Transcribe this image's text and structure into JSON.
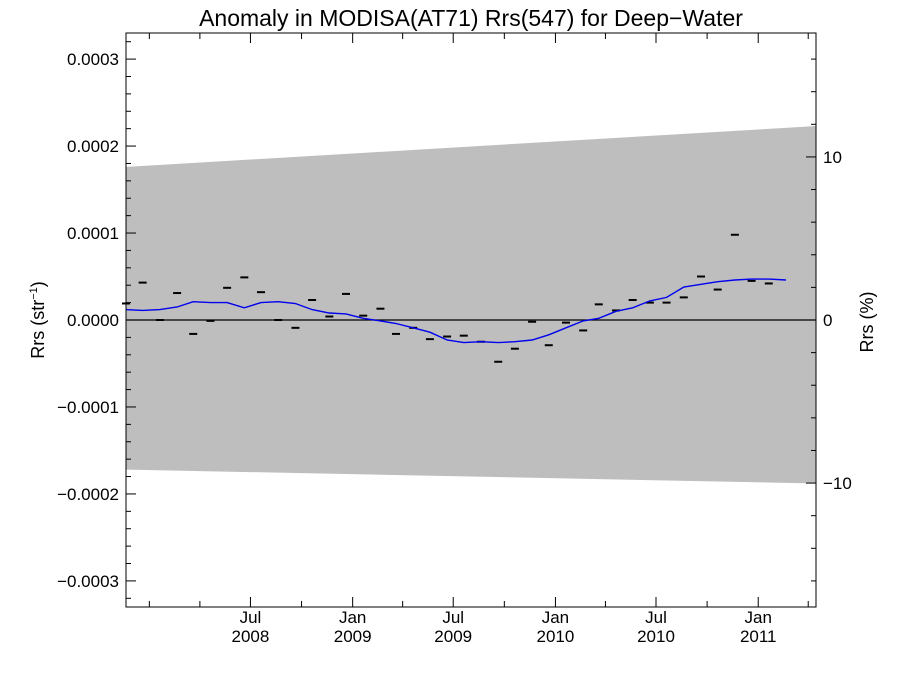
{
  "chart_data": {
    "type": "line",
    "title": "Anomaly in MODISA(AT71) Rrs(547) for Deep−Water",
    "ylabel_left": "Rrs (str",
    "ylabel_left_sup": "−1",
    "ylabel_left_close": ")",
    "ylabel_right": "Rrs (%)",
    "x_range": [
      "2007-11-20",
      "2011-04-15"
    ],
    "ylim_left": [
      -0.00033,
      0.00033
    ],
    "ylim_right": [
      -17.6,
      17.6
    ],
    "y_ticks_left": [
      {
        "value": 0.0003,
        "label": "0.0003"
      },
      {
        "value": 0.0002,
        "label": "0.0002"
      },
      {
        "value": 0.0001,
        "label": "0.0001"
      },
      {
        "value": 0.0,
        "label": "0.0000"
      },
      {
        "value": -0.0001,
        "label": "−0.0001"
      },
      {
        "value": -0.0002,
        "label": "−0.0002"
      },
      {
        "value": -0.0003,
        "label": "−0.0003"
      }
    ],
    "y_ticks_right": [
      {
        "value": 10,
        "label": "10"
      },
      {
        "value": 0,
        "label": "0"
      },
      {
        "value": -10,
        "label": "−10"
      }
    ],
    "x_ticks": [
      {
        "date": "2008-07-01",
        "month": "Jul",
        "year": "2008"
      },
      {
        "date": "2009-01-01",
        "month": "Jan",
        "year": "2009"
      },
      {
        "date": "2009-07-01",
        "month": "Jul",
        "year": "2009"
      },
      {
        "date": "2010-01-01",
        "month": "Jan",
        "year": "2010"
      },
      {
        "date": "2010-07-01",
        "month": "Jul",
        "year": "2010"
      },
      {
        "date": "2011-01-01",
        "month": "Jan",
        "year": "2011"
      }
    ],
    "uncertainty_band": {
      "color": "#bebebe",
      "upper": [
        {
          "date": "2007-11-20",
          "value": 0.000176
        },
        {
          "date": "2011-04-15",
          "value": 0.000223
        }
      ],
      "lower": [
        {
          "date": "2007-11-20",
          "value": -0.000172
        },
        {
          "date": "2011-04-15",
          "value": -0.000188
        }
      ]
    },
    "zero_line": true,
    "series": [
      {
        "kind": "points",
        "color": "#000000",
        "points": [
          {
            "date": "2007-11-20",
            "value": 1.9e-05
          },
          {
            "date": "2007-12-20",
            "value": 4.3e-05
          },
          {
            "date": "2008-01-20",
            "value": 0.0
          },
          {
            "date": "2008-02-20",
            "value": 3.1e-05
          },
          {
            "date": "2008-03-20",
            "value": -1.6e-05
          },
          {
            "date": "2008-04-20",
            "value": -1e-06
          },
          {
            "date": "2008-05-20",
            "value": 3.7e-05
          },
          {
            "date": "2008-06-20",
            "value": 4.9e-05
          },
          {
            "date": "2008-07-20",
            "value": 3.2e-05
          },
          {
            "date": "2008-08-20",
            "value": 0.0
          },
          {
            "date": "2008-09-20",
            "value": -9e-06
          },
          {
            "date": "2008-10-20",
            "value": 2.3e-05
          },
          {
            "date": "2008-11-20",
            "value": 4e-06
          },
          {
            "date": "2008-12-20",
            "value": 3e-05
          },
          {
            "date": "2009-01-20",
            "value": 5e-06
          },
          {
            "date": "2009-02-20",
            "value": 1.3e-05
          },
          {
            "date": "2009-03-20",
            "value": -1.6e-05
          },
          {
            "date": "2009-04-20",
            "value": -9e-06
          },
          {
            "date": "2009-05-20",
            "value": -2.2e-05
          },
          {
            "date": "2009-06-20",
            "value": -1.9e-05
          },
          {
            "date": "2009-07-20",
            "value": -1.8e-05
          },
          {
            "date": "2009-08-20",
            "value": -2.5e-05
          },
          {
            "date": "2009-09-20",
            "value": -4.8e-05
          },
          {
            "date": "2009-10-20",
            "value": -3.3e-05
          },
          {
            "date": "2009-11-20",
            "value": -2e-06
          },
          {
            "date": "2009-12-20",
            "value": -2.9e-05
          },
          {
            "date": "2010-01-20",
            "value": -3e-06
          },
          {
            "date": "2010-02-20",
            "value": -1.2e-05
          },
          {
            "date": "2010-03-20",
            "value": 1.8e-05
          },
          {
            "date": "2010-04-20",
            "value": 1.1e-05
          },
          {
            "date": "2010-05-20",
            "value": 2.3e-05
          },
          {
            "date": "2010-06-20",
            "value": 2e-05
          },
          {
            "date": "2010-07-20",
            "value": 2e-05
          },
          {
            "date": "2010-08-20",
            "value": 2.6e-05
          },
          {
            "date": "2010-09-20",
            "value": 5e-05
          },
          {
            "date": "2010-10-20",
            "value": 3.5e-05
          },
          {
            "date": "2010-11-20",
            "value": 9.8e-05
          },
          {
            "date": "2010-12-20",
            "value": 4.5e-05
          },
          {
            "date": "2011-01-20",
            "value": 4.2e-05
          }
        ]
      },
      {
        "kind": "line",
        "color": "#0000ee",
        "points": [
          {
            "date": "2007-11-20",
            "value": 1.2e-05
          },
          {
            "date": "2007-12-20",
            "value": 1.1e-05
          },
          {
            "date": "2008-01-20",
            "value": 1.2e-05
          },
          {
            "date": "2008-02-20",
            "value": 1.5e-05
          },
          {
            "date": "2008-03-20",
            "value": 2.1e-05
          },
          {
            "date": "2008-04-20",
            "value": 2e-05
          },
          {
            "date": "2008-05-20",
            "value": 2e-05
          },
          {
            "date": "2008-06-20",
            "value": 1.4e-05
          },
          {
            "date": "2008-07-20",
            "value": 2e-05
          },
          {
            "date": "2008-08-20",
            "value": 2.1e-05
          },
          {
            "date": "2008-09-20",
            "value": 1.9e-05
          },
          {
            "date": "2008-10-20",
            "value": 1.2e-05
          },
          {
            "date": "2008-11-20",
            "value": 8e-06
          },
          {
            "date": "2008-12-20",
            "value": 7e-06
          },
          {
            "date": "2009-01-20",
            "value": 2e-06
          },
          {
            "date": "2009-02-20",
            "value": -1e-06
          },
          {
            "date": "2009-03-20",
            "value": -4e-06
          },
          {
            "date": "2009-04-20",
            "value": -9e-06
          },
          {
            "date": "2009-05-20",
            "value": -1.4e-05
          },
          {
            "date": "2009-06-20",
            "value": -2.3e-05
          },
          {
            "date": "2009-07-20",
            "value": -2.6e-05
          },
          {
            "date": "2009-08-20",
            "value": -2.5e-05
          },
          {
            "date": "2009-09-20",
            "value": -2.6e-05
          },
          {
            "date": "2009-10-20",
            "value": -2.5e-05
          },
          {
            "date": "2009-11-20",
            "value": -2.3e-05
          },
          {
            "date": "2009-12-20",
            "value": -1.7e-05
          },
          {
            "date": "2010-01-20",
            "value": -9e-06
          },
          {
            "date": "2010-02-20",
            "value": -1e-06
          },
          {
            "date": "2010-03-20",
            "value": 2e-06
          },
          {
            "date": "2010-04-20",
            "value": 1e-05
          },
          {
            "date": "2010-05-20",
            "value": 1.4e-05
          },
          {
            "date": "2010-06-20",
            "value": 2.2e-05
          },
          {
            "date": "2010-07-20",
            "value": 2.6e-05
          },
          {
            "date": "2010-08-20",
            "value": 3.8e-05
          },
          {
            "date": "2010-09-20",
            "value": 4.1e-05
          },
          {
            "date": "2010-10-20",
            "value": 4.4e-05
          },
          {
            "date": "2010-11-20",
            "value": 4.6e-05
          },
          {
            "date": "2010-12-20",
            "value": 4.7e-05
          },
          {
            "date": "2011-01-20",
            "value": 4.7e-05
          },
          {
            "date": "2011-02-20",
            "value": 4.6e-05
          }
        ]
      }
    ],
    "grid": false,
    "legend": "none"
  }
}
